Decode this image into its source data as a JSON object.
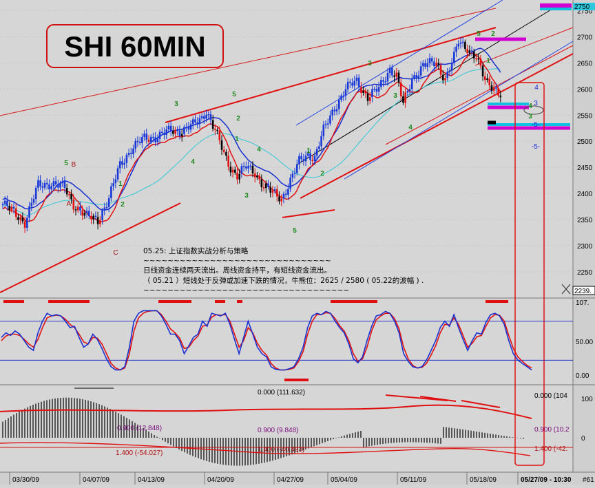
{
  "chart_data": {
    "type": "candlestick",
    "title": "SHI 60MIN",
    "x_axis": {
      "date_labels": [
        "03/30/09",
        "04/07/09",
        "04/13/09",
        "04/20/09",
        "04/27/09",
        "05/04/09",
        "05/11/09",
        "05/18/09",
        "05/27/09 - 10:30"
      ],
      "corner_label": "#61"
    },
    "price_axis": {
      "ticks": [
        "2750",
        "2700",
        "2650",
        "2600",
        "2550",
        "2500",
        "2450",
        "2400",
        "2350",
        "2300",
        "2250"
      ],
      "ylim": [
        2230,
        2760
      ],
      "current_label": "2239.",
      "last_price": "2750"
    },
    "stoch_axis": {
      "ticks": [
        "107.",
        "50.00",
        "0.00"
      ],
      "ylim": [
        -5,
        107
      ]
    },
    "macd_axis": {
      "ticks": [
        "100",
        "0"
      ]
    },
    "close_anchors": [
      [
        0,
        2380
      ],
      [
        6,
        2360
      ],
      [
        10,
        2345
      ],
      [
        16,
        2415
      ],
      [
        22,
        2420
      ],
      [
        28,
        2410
      ],
      [
        32,
        2380
      ],
      [
        38,
        2355
      ],
      [
        43,
        2350
      ],
      [
        48,
        2390
      ],
      [
        53,
        2455
      ],
      [
        58,
        2485
      ],
      [
        64,
        2505
      ],
      [
        70,
        2510
      ],
      [
        76,
        2520
      ],
      [
        80,
        2520
      ],
      [
        86,
        2530
      ],
      [
        90,
        2545
      ],
      [
        92,
        2560
      ],
      [
        96,
        2520
      ],
      [
        100,
        2475
      ],
      [
        103,
        2450
      ],
      [
        106,
        2435
      ],
      [
        110,
        2450
      ],
      [
        114,
        2440
      ],
      [
        118,
        2415
      ],
      [
        122,
        2400
      ],
      [
        126,
        2390
      ],
      [
        130,
        2425
      ],
      [
        134,
        2460
      ],
      [
        138,
        2475
      ],
      [
        141,
        2470
      ],
      [
        145,
        2520
      ],
      [
        150,
        2565
      ],
      [
        155,
        2600
      ],
      [
        160,
        2615
      ],
      [
        165,
        2585
      ],
      [
        170,
        2600
      ],
      [
        175,
        2640
      ],
      [
        178,
        2625
      ],
      [
        181,
        2570
      ],
      [
        185,
        2620
      ],
      [
        190,
        2645
      ],
      [
        196,
        2650
      ],
      [
        200,
        2620
      ],
      [
        204,
        2660
      ],
      [
        206,
        2690
      ],
      [
        210,
        2680
      ],
      [
        214,
        2660
      ],
      [
        218,
        2615
      ],
      [
        222,
        2605
      ],
      [
        225,
        2590
      ]
    ],
    "labels": {
      "wave_green": [
        "5",
        "1",
        "2",
        "3",
        "4",
        "5",
        "2",
        "1",
        "4",
        "3",
        "1",
        "2",
        "3",
        "5",
        "4",
        "3",
        "5",
        "2",
        "1",
        "4",
        "3"
      ],
      "wave_red": [
        "B",
        "A",
        "C"
      ],
      "wave_blue": [
        "3",
        "4",
        "-5-",
        "-5-"
      ]
    },
    "annotations": {
      "title": "05.25: 上证指数实战分析与策略",
      "rule": "~~~~~~~~~~~~~~~~~~~~~~~~~~~~~~~",
      "line1": "日线资金连续两天流出。周线资金持平，有短线资金流出。",
      "line2": "（ 05.21 ）短线处于反弹或加速下跌的情况，牛熊位：2625 / 2580 ( 05.22的波幅 ) .",
      "rule2": "~~~~~~~~~~~~~~~~~~~~~~~~~~~~~~~~~~"
    },
    "stoch": {
      "k": [
        55,
        62,
        58,
        65,
        60,
        50,
        40,
        35,
        62,
        80,
        92,
        88,
        90,
        88,
        80,
        70,
        72,
        55,
        40,
        45,
        60,
        52,
        38,
        22,
        10,
        5,
        5,
        10,
        40,
        80,
        92,
        96,
        96,
        96,
        96,
        88,
        75,
        60,
        60,
        50,
        30,
        42,
        55,
        60,
        80,
        72,
        92,
        90,
        88,
        92,
        75,
        52,
        30,
        55,
        80,
        60,
        40,
        30,
        25,
        10,
        6,
        5,
        5,
        7,
        10,
        22,
        40,
        70,
        88,
        92,
        90,
        95,
        92,
        80,
        70,
        62,
        45,
        22,
        16,
        25,
        50,
        72,
        88,
        90,
        95,
        92,
        80,
        62,
        30,
        18,
        10,
        8,
        10,
        20,
        35,
        50,
        70,
        80,
        72,
        90,
        70,
        52,
        35,
        50,
        62,
        60,
        78,
        90,
        92,
        88,
        75,
        50,
        30,
        20,
        15,
        10,
        5
      ],
      "d": [
        50,
        57,
        60,
        60,
        58,
        52,
        45,
        40,
        52,
        70,
        85,
        88,
        89,
        88,
        83,
        75,
        70,
        60,
        48,
        45,
        55,
        54,
        45,
        30,
        15,
        8,
        5,
        8,
        30,
        65,
        85,
        92,
        95,
        96,
        96,
        90,
        80,
        68,
        62,
        54,
        38,
        40,
        50,
        57,
        72,
        74,
        86,
        90,
        89,
        90,
        80,
        60,
        40,
        50,
        70,
        62,
        46,
        35,
        28,
        15,
        8,
        5,
        5,
        6,
        8,
        18,
        33,
        60,
        80,
        90,
        90,
        93,
        92,
        84,
        73,
        65,
        50,
        30,
        18,
        22,
        40,
        65,
        82,
        88,
        92,
        92,
        84,
        68,
        40,
        22,
        12,
        8,
        9,
        15,
        28,
        42,
        62,
        75,
        74,
        85,
        75,
        58,
        40,
        46,
        56,
        58,
        72,
        85,
        90,
        89,
        80,
        58,
        38,
        25,
        18,
        12,
        8
      ],
      "red_bars": [
        [
          5,
          35
        ],
        [
          70,
          130
        ],
        [
          230,
          278
        ],
        [
          312,
          327
        ],
        [
          344,
          352
        ],
        [
          480,
          548
        ],
        [
          705,
          738
        ]
      ],
      "red_bar_bottom": [
        [
          413,
          448
        ]
      ]
    },
    "macd": {
      "level_top": "0.000 (111.632)",
      "level_top_right": "0.000 (104",
      "level_mid_left": "0.900 (12.848)",
      "level_mid_center": "0.900 (9.848)",
      "level_mid_right": "0.900 (10.2",
      "level_low_left": "1.400 (-54.027)",
      "level_low_center": "1.400 (-40.493)",
      "level_low_right": "1.400 (-42."
    }
  }
}
